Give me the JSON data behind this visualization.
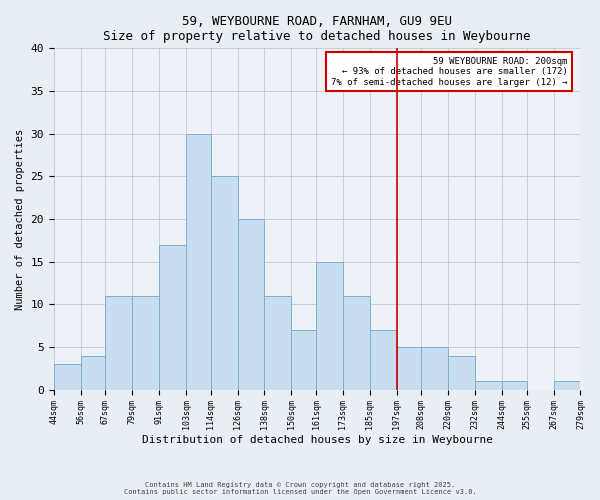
{
  "title": "59, WEYBOURNE ROAD, FARNHAM, GU9 9EU",
  "subtitle": "Size of property relative to detached houses in Weybourne",
  "xlabel": "Distribution of detached houses by size in Weybourne",
  "ylabel": "Number of detached properties",
  "bar_color": "#c8ddef",
  "bar_edge_color": "#7aaed4",
  "bin_edges": [
    44,
    56,
    67,
    79,
    91,
    103,
    114,
    126,
    138,
    150,
    161,
    173,
    185,
    197,
    208,
    220,
    232,
    244,
    255,
    267,
    279
  ],
  "counts": [
    3,
    4,
    11,
    11,
    17,
    30,
    25,
    20,
    11,
    7,
    15,
    11,
    7,
    5,
    5,
    4,
    1,
    1,
    0,
    1
  ],
  "vline_x": 197,
  "vline_color": "#cc0000",
  "annotation_title": "59 WEYBOURNE ROAD: 200sqm",
  "annotation_line1": "← 93% of detached houses are smaller (172)",
  "annotation_line2": "7% of semi-detached houses are larger (12) →",
  "ylim": [
    0,
    40
  ],
  "yticks": [
    0,
    5,
    10,
    15,
    20,
    25,
    30,
    35,
    40
  ],
  "footnote1": "Contains HM Land Registry data © Crown copyright and database right 2025.",
  "footnote2": "Contains public sector information licensed under the Open Government Licence v3.0.",
  "bg_color": "#e8eef4",
  "plot_bg_color": "#eef2f7"
}
